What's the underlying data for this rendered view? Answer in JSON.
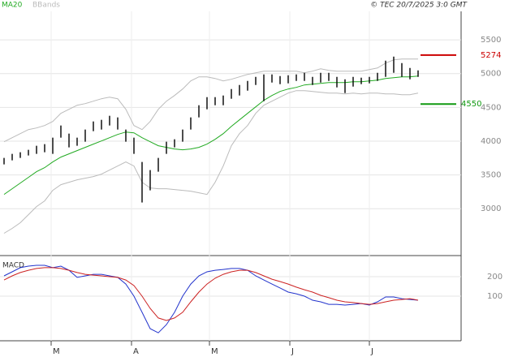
{
  "chart_data": {
    "type": "ohlc",
    "copyright": "© TEC 20/7/2025 3:0 GMT",
    "ylim": [
      2330,
      5970
    ],
    "yticks": [
      3000,
      3500,
      4000,
      4500,
      5000,
      5500
    ],
    "xlim": [
      -0.5,
      56.3
    ],
    "xticks": [
      {
        "value": 5.8,
        "label": "M"
      },
      {
        "value": 15.7,
        "label": "A"
      },
      {
        "value": 25.3,
        "label": "M"
      },
      {
        "value": 35.2,
        "label": "J"
      },
      {
        "value": 45,
        "label": "J"
      }
    ],
    "bar_color": "#000000",
    "high": [
      3752,
      3812,
      3836,
      3872,
      3932,
      3956,
      4052,
      4232,
      4112,
      4052,
      4172,
      4292,
      4316,
      4376,
      4352,
      4172,
      4052,
      3692,
      3572,
      3752,
      3992,
      4028,
      4172,
      4352,
      4532,
      4652,
      4652,
      4676,
      4772,
      4832,
      4892,
      4952,
      4988,
      4988,
      4964,
      4976,
      4988,
      5012,
      4952,
      5012,
      5012,
      4952,
      4916,
      4952,
      4940,
      4952,
      5012,
      5192,
      5252,
      5156,
      5084,
      5048
    ],
    "low": [
      3656,
      3716,
      3752,
      3788,
      3812,
      3836,
      3812,
      4052,
      3908,
      3932,
      3992,
      4148,
      4172,
      4232,
      4172,
      3992,
      3812,
      3092,
      3272,
      3548,
      3812,
      3908,
      3992,
      4172,
      4352,
      4472,
      4532,
      4532,
      4628,
      4676,
      4748,
      4832,
      4592,
      4868,
      4844,
      4856,
      4892,
      4892,
      4832,
      4868,
      4892,
      4796,
      4712,
      4808,
      4844,
      4856,
      4892,
      4952,
      5012,
      4952,
      4916,
      4952
    ],
    "overlays": [
      {
        "name": "MA20",
        "color": "#22aa22",
        "values": [
          3212,
          3296,
          3380,
          3464,
          3548,
          3608,
          3692,
          3764,
          3812,
          3860,
          3908,
          3956,
          4004,
          4052,
          4100,
          4136,
          4124,
          4052,
          3992,
          3932,
          3908,
          3884,
          3872,
          3884,
          3908,
          3956,
          4028,
          4112,
          4220,
          4316,
          4412,
          4508,
          4604,
          4676,
          4736,
          4772,
          4796,
          4832,
          4844,
          4856,
          4868,
          4868,
          4868,
          4880,
          4880,
          4892,
          4904,
          4928,
          4940,
          4952,
          4952,
          4964
        ]
      },
      {
        "name": "BBands",
        "color": "#bbbbbb",
        "upper": [
          3992,
          4052,
          4112,
          4172,
          4196,
          4232,
          4292,
          4412,
          4472,
          4532,
          4556,
          4592,
          4628,
          4652,
          4628,
          4472,
          4232,
          4172,
          4292,
          4472,
          4592,
          4676,
          4772,
          4892,
          4952,
          4952,
          4928,
          4892,
          4916,
          4952,
          4988,
          5012,
          5036,
          5036,
          5036,
          5036,
          5036,
          5012,
          5036,
          5072,
          5048,
          5036,
          5036,
          5036,
          5036,
          5060,
          5084,
          5156,
          5204,
          5216,
          5216,
          5216
        ],
        "lower": [
          2636,
          2708,
          2792,
          2912,
          3032,
          3116,
          3272,
          3356,
          3392,
          3428,
          3452,
          3476,
          3512,
          3572,
          3632,
          3692,
          3632,
          3392,
          3308,
          3296,
          3296,
          3284,
          3272,
          3260,
          3236,
          3212,
          3392,
          3632,
          3932,
          4112,
          4232,
          4412,
          4532,
          4592,
          4652,
          4712,
          4748,
          4748,
          4736,
          4724,
          4712,
          4712,
          4700,
          4712,
          4700,
          4712,
          4712,
          4700,
          4700,
          4688,
          4688,
          4712
        ]
      }
    ],
    "levels": [
      {
        "value": 5274,
        "color": "#cc0000"
      },
      {
        "value": 4550,
        "color": "#119911"
      }
    ],
    "macd": {
      "title": "MACD",
      "ylim": [
        -129,
        304
      ],
      "yticks": [
        100,
        200
      ],
      "series": [
        {
          "color": "#2233cc",
          "values": [
            204,
            225,
            246,
            254,
            258,
            258,
            246,
            254,
            233,
            196,
            204,
            212,
            212,
            204,
            196,
            162,
            100,
            17,
            -67,
            -88,
            -46,
            17,
            100,
            162,
            204,
            225,
            233,
            237,
            242,
            242,
            233,
            204,
            183,
            162,
            142,
            121,
            112,
            100,
            79,
            71,
            58,
            58,
            54,
            58,
            62,
            54,
            71,
            96,
            96,
            87,
            83,
            79
          ]
        },
        {
          "color": "#cc2222",
          "values": [
            183,
            204,
            221,
            233,
            242,
            246,
            246,
            242,
            233,
            221,
            212,
            208,
            204,
            200,
            196,
            183,
            154,
            100,
            37,
            -12,
            -25,
            -12,
            17,
            71,
            121,
            162,
            192,
            212,
            225,
            233,
            233,
            221,
            204,
            187,
            175,
            162,
            146,
            133,
            121,
            104,
            92,
            79,
            71,
            67,
            62,
            58,
            62,
            71,
            79,
            83,
            87,
            79
          ]
        }
      ]
    }
  }
}
